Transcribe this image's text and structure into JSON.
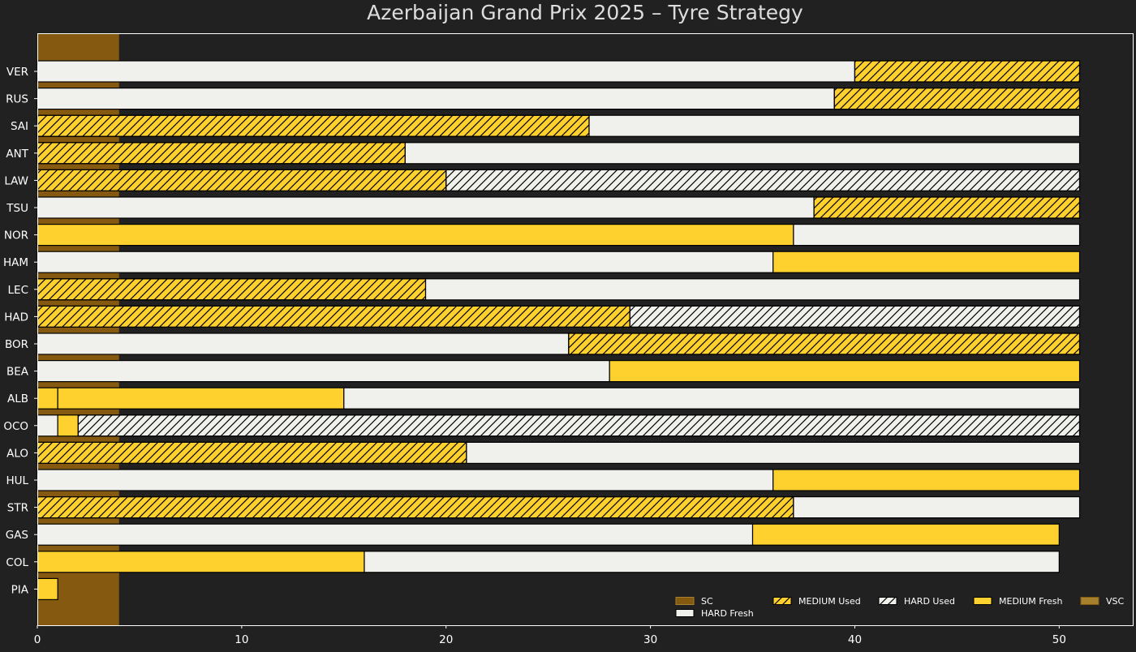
{
  "chart_data": {
    "type": "bar",
    "orientation": "horizontal-stacked",
    "title": "Azerbaijan Grand Prix 2025  –  Tyre Strategy",
    "xlabel": "",
    "ylabel": "",
    "xlim": [
      0,
      53.6
    ],
    "xticks": [
      0,
      10,
      20,
      30,
      40,
      50
    ],
    "grid": false,
    "legend_position": "bottom-right",
    "colors": {
      "background": "#212121",
      "axes_edge": "#ffffff",
      "text": "#ffffff",
      "title_text": "#dddddd",
      "medium": "#ffd12e",
      "hard": "#f0f0ec",
      "bar_edge": "#000000",
      "sc": "#855a10",
      "vsc": "#a5812e"
    },
    "legend": [
      {
        "label": "SC",
        "key": "SC"
      },
      {
        "label": "HARD Fresh",
        "key": "HARD_FRESH"
      },
      {
        "label": "MEDIUM Used",
        "key": "MEDIUM_USED"
      },
      {
        "label": "HARD Used",
        "key": "HARD_USED"
      },
      {
        "label": "MEDIUM Fresh",
        "key": "MEDIUM_FRESH"
      },
      {
        "label": "VSC",
        "key": "VSC"
      }
    ],
    "safety_car": [
      {
        "type": "SC",
        "start_lap": 0,
        "end_lap": 4
      }
    ],
    "drivers": [
      {
        "name": "VER",
        "stints": [
          {
            "compound": "HARD",
            "fresh": true,
            "start": 0,
            "end": 40
          },
          {
            "compound": "MEDIUM",
            "fresh": false,
            "start": 40,
            "end": 51
          }
        ]
      },
      {
        "name": "RUS",
        "stints": [
          {
            "compound": "HARD",
            "fresh": true,
            "start": 0,
            "end": 39
          },
          {
            "compound": "MEDIUM",
            "fresh": false,
            "start": 39,
            "end": 51
          }
        ]
      },
      {
        "name": "SAI",
        "stints": [
          {
            "compound": "MEDIUM",
            "fresh": false,
            "start": 0,
            "end": 27
          },
          {
            "compound": "HARD",
            "fresh": true,
            "start": 27,
            "end": 51
          }
        ]
      },
      {
        "name": "ANT",
        "stints": [
          {
            "compound": "MEDIUM",
            "fresh": false,
            "start": 0,
            "end": 18
          },
          {
            "compound": "HARD",
            "fresh": true,
            "start": 18,
            "end": 51
          }
        ]
      },
      {
        "name": "LAW",
        "stints": [
          {
            "compound": "MEDIUM",
            "fresh": false,
            "start": 0,
            "end": 20
          },
          {
            "compound": "HARD",
            "fresh": false,
            "start": 20,
            "end": 51
          }
        ]
      },
      {
        "name": "TSU",
        "stints": [
          {
            "compound": "HARD",
            "fresh": true,
            "start": 0,
            "end": 38
          },
          {
            "compound": "MEDIUM",
            "fresh": false,
            "start": 38,
            "end": 51
          }
        ]
      },
      {
        "name": "NOR",
        "stints": [
          {
            "compound": "MEDIUM",
            "fresh": true,
            "start": 0,
            "end": 37
          },
          {
            "compound": "HARD",
            "fresh": true,
            "start": 37,
            "end": 51
          }
        ]
      },
      {
        "name": "HAM",
        "stints": [
          {
            "compound": "HARD",
            "fresh": true,
            "start": 0,
            "end": 36
          },
          {
            "compound": "MEDIUM",
            "fresh": true,
            "start": 36,
            "end": 51
          }
        ]
      },
      {
        "name": "LEC",
        "stints": [
          {
            "compound": "MEDIUM",
            "fresh": false,
            "start": 0,
            "end": 19
          },
          {
            "compound": "HARD",
            "fresh": true,
            "start": 19,
            "end": 51
          }
        ]
      },
      {
        "name": "HAD",
        "stints": [
          {
            "compound": "MEDIUM",
            "fresh": false,
            "start": 0,
            "end": 29
          },
          {
            "compound": "HARD",
            "fresh": false,
            "start": 29,
            "end": 51
          }
        ]
      },
      {
        "name": "BOR",
        "stints": [
          {
            "compound": "HARD",
            "fresh": true,
            "start": 0,
            "end": 26
          },
          {
            "compound": "MEDIUM",
            "fresh": false,
            "start": 26,
            "end": 51
          }
        ]
      },
      {
        "name": "BEA",
        "stints": [
          {
            "compound": "HARD",
            "fresh": true,
            "start": 0,
            "end": 28
          },
          {
            "compound": "MEDIUM",
            "fresh": true,
            "start": 28,
            "end": 51
          }
        ]
      },
      {
        "name": "ALB",
        "stints": [
          {
            "compound": "MEDIUM",
            "fresh": true,
            "start": 0,
            "end": 1
          },
          {
            "compound": "MEDIUM",
            "fresh": true,
            "start": 1,
            "end": 15
          },
          {
            "compound": "HARD",
            "fresh": true,
            "start": 15,
            "end": 51
          }
        ]
      },
      {
        "name": "OCO",
        "stints": [
          {
            "compound": "HARD",
            "fresh": true,
            "start": 0,
            "end": 1
          },
          {
            "compound": "MEDIUM",
            "fresh": true,
            "start": 1,
            "end": 2
          },
          {
            "compound": "HARD",
            "fresh": false,
            "start": 2,
            "end": 51
          }
        ]
      },
      {
        "name": "ALO",
        "stints": [
          {
            "compound": "MEDIUM",
            "fresh": false,
            "start": 0,
            "end": 21
          },
          {
            "compound": "HARD",
            "fresh": true,
            "start": 21,
            "end": 51
          }
        ]
      },
      {
        "name": "HUL",
        "stints": [
          {
            "compound": "HARD",
            "fresh": true,
            "start": 0,
            "end": 36
          },
          {
            "compound": "MEDIUM",
            "fresh": true,
            "start": 36,
            "end": 51
          }
        ]
      },
      {
        "name": "STR",
        "stints": [
          {
            "compound": "MEDIUM",
            "fresh": false,
            "start": 0,
            "end": 37
          },
          {
            "compound": "HARD",
            "fresh": true,
            "start": 37,
            "end": 51
          }
        ]
      },
      {
        "name": "GAS",
        "stints": [
          {
            "compound": "HARD",
            "fresh": true,
            "start": 0,
            "end": 35
          },
          {
            "compound": "MEDIUM",
            "fresh": true,
            "start": 35,
            "end": 50
          }
        ]
      },
      {
        "name": "COL",
        "stints": [
          {
            "compound": "MEDIUM",
            "fresh": true,
            "start": 0,
            "end": 16
          },
          {
            "compound": "HARD",
            "fresh": true,
            "start": 16,
            "end": 50
          }
        ]
      },
      {
        "name": "PIA",
        "stints": [
          {
            "compound": "MEDIUM",
            "fresh": true,
            "start": 0,
            "end": 1
          }
        ]
      }
    ]
  }
}
